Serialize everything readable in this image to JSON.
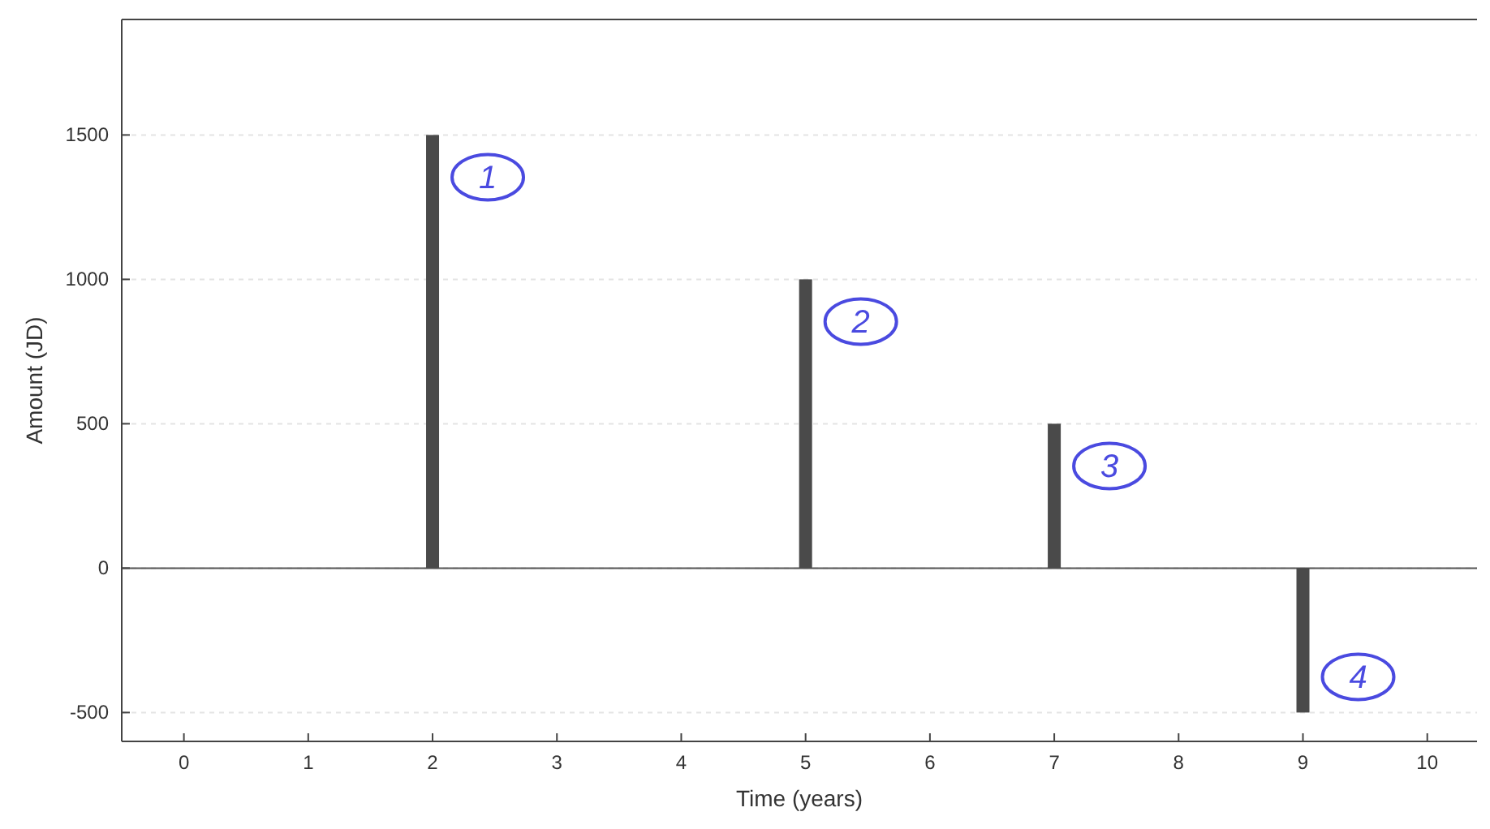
{
  "chart_data": {
    "type": "bar",
    "xlabel": "Time (years)",
    "ylabel": "Amount (JD)",
    "x": [
      2,
      5,
      7,
      9
    ],
    "values": [
      1500,
      1000,
      500,
      -500
    ],
    "color": "#4a4a4a",
    "xlim": [
      -0.5,
      10.4
    ],
    "xticks": [
      0,
      1,
      2,
      3,
      4,
      5,
      6,
      7,
      8,
      9,
      10
    ],
    "ylim": [
      -600,
      1900
    ],
    "yticks": [
      -500,
      0,
      500,
      1000,
      1500
    ],
    "grid": "y",
    "annotations": [
      {
        "text": "1",
        "x": 2,
        "y": 1500
      },
      {
        "text": "2",
        "x": 5,
        "y": 1000
      },
      {
        "text": "3",
        "x": 7,
        "y": 500
      },
      {
        "text": "4",
        "x": 9,
        "y": -500
      }
    ]
  }
}
